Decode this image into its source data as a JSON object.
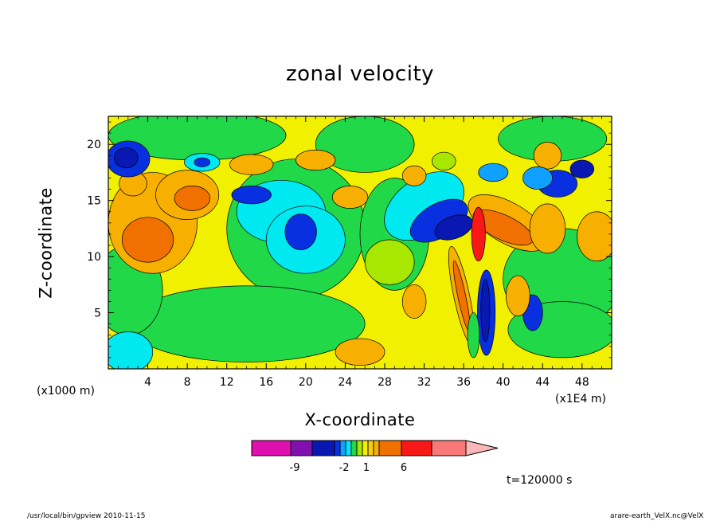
{
  "chart_data": {
    "type": "heatmap",
    "title": "zonal velocity",
    "xlabel": "X-coordinate",
    "ylabel": "Z-coordinate",
    "x_unit_label": "(x1E4 m)",
    "y_unit_label": "(x1000 m)",
    "xlim": [
      0,
      51
    ],
    "ylim": [
      0,
      22.5
    ],
    "x_ticks": [
      4,
      8,
      12,
      16,
      20,
      24,
      28,
      32,
      36,
      40,
      44,
      48
    ],
    "y_ticks": [
      5,
      10,
      15,
      20
    ],
    "x_tick_labels": [
      "4",
      "8",
      "12",
      "16",
      "20",
      "24",
      "28",
      "32",
      "36",
      "40",
      "44",
      "48"
    ],
    "y_tick_labels": [
      "5",
      "10",
      "15",
      "20"
    ],
    "colorbar": {
      "colors": [
        "#e010b0",
        "#8010b0",
        "#0818b0",
        "#0830e0",
        "#10a0ff",
        "#00e8f0",
        "#20d848",
        "#a8e800",
        "#f0f000",
        "#f8d000",
        "#f8b000",
        "#f07000",
        "#f81818",
        "#f87878",
        "#f8b8b8"
      ],
      "tick_labels": [
        "-9",
        "-2",
        "1",
        "6"
      ]
    },
    "features": [
      {
        "kind": "negative",
        "x": 1.7,
        "z": 18.8,
        "level": -6
      },
      {
        "kind": "negative",
        "x": 9.5,
        "z": 18.4,
        "level": -5
      },
      {
        "kind": "negative",
        "x": 14.5,
        "z": 15.3,
        "level": -6
      },
      {
        "kind": "negative",
        "x": 19.5,
        "z": 12.2,
        "level": -6
      },
      {
        "kind": "negative",
        "x": 34.5,
        "z": 12.5,
        "level": -9
      },
      {
        "kind": "negative",
        "x": 38.5,
        "z": 5.5,
        "level": -9
      },
      {
        "kind": "positive",
        "x": 4.0,
        "z": 11.5,
        "level": 6
      },
      {
        "kind": "positive",
        "x": 8.5,
        "z": 15.0,
        "level": 5
      },
      {
        "kind": "positive",
        "x": 14.5,
        "z": 18.2,
        "level": 4
      },
      {
        "kind": "positive",
        "x": 39.5,
        "z": 12.5,
        "level": 9
      },
      {
        "kind": "positive",
        "x": 35.5,
        "z": 6.0,
        "level": 8
      },
      {
        "kind": "positive",
        "x": 49.5,
        "z": 11.5,
        "level": 5
      }
    ]
  },
  "time_label": "t=120000 s",
  "footer_left": "/usr/local/bin/gpview   2010-11-15",
  "footer_right": "arare-earth_VelX.nc@VelX"
}
